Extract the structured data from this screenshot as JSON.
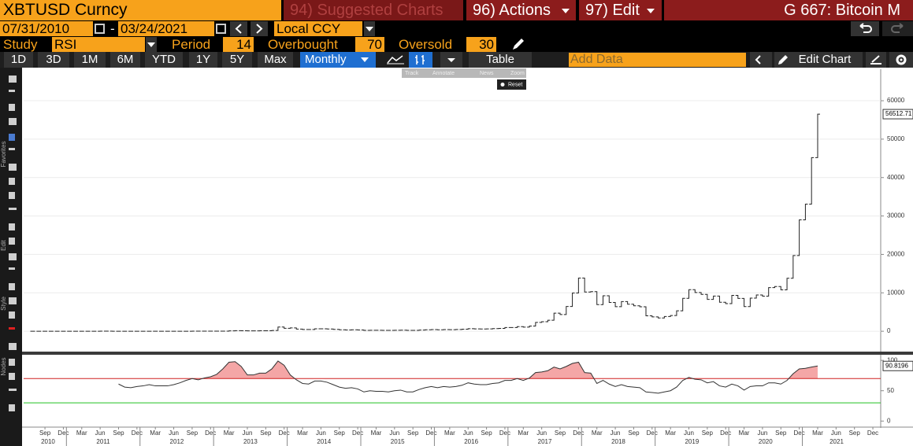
{
  "header": {
    "ticker": "XBTUSD Curncy",
    "suggested": "94) Suggested Charts",
    "actions": "96) Actions",
    "edit": "97) Edit",
    "page": "G 667: Bitcoin M"
  },
  "dates": {
    "start": "07/31/2010",
    "separator": "-",
    "end": "03/24/2021",
    "currency": "Local CCY"
  },
  "study": {
    "label": "Study",
    "name": "RSI",
    "period_label": "Period",
    "period": 14,
    "overbought_label": "Overbought",
    "overbought": 70,
    "oversold_label": "Oversold",
    "oversold": 30
  },
  "toolbar": {
    "ranges": [
      "1D",
      "3D",
      "1M",
      "6M",
      "YTD",
      "1Y",
      "5Y",
      "Max"
    ],
    "frequency": "Monthly",
    "table": "Table",
    "add_data": "Add Data",
    "edit_chart": "Edit Chart"
  },
  "overlay": {
    "tools": [
      "Track",
      "Annotate",
      "News",
      "Zoom"
    ],
    "reset": "Reset"
  },
  "sidebar": {
    "sections": [
      "Favorites",
      "Edit",
      "Style",
      "Nodes"
    ]
  },
  "chart_data": {
    "type": "price-bar",
    "color": "#222222",
    "x": [
      "2010-07",
      "2010-08",
      "2010-09",
      "2010-10",
      "2010-11",
      "2010-12",
      "2011-01",
      "2011-02",
      "2011-03",
      "2011-04",
      "2011-05",
      "2011-06",
      "2011-07",
      "2011-08",
      "2011-09",
      "2011-10",
      "2011-11",
      "2011-12",
      "2012-01",
      "2012-02",
      "2012-03",
      "2012-04",
      "2012-05",
      "2012-06",
      "2012-07",
      "2012-08",
      "2012-09",
      "2012-10",
      "2012-11",
      "2012-12",
      "2013-01",
      "2013-02",
      "2013-03",
      "2013-04",
      "2013-05",
      "2013-06",
      "2013-07",
      "2013-08",
      "2013-09",
      "2013-10",
      "2013-11",
      "2013-12",
      "2014-01",
      "2014-02",
      "2014-03",
      "2014-04",
      "2014-05",
      "2014-06",
      "2014-07",
      "2014-08",
      "2014-09",
      "2014-10",
      "2014-11",
      "2014-12",
      "2015-01",
      "2015-02",
      "2015-03",
      "2015-04",
      "2015-05",
      "2015-06",
      "2015-07",
      "2015-08",
      "2015-09",
      "2015-10",
      "2015-11",
      "2015-12",
      "2016-01",
      "2016-02",
      "2016-03",
      "2016-04",
      "2016-05",
      "2016-06",
      "2016-07",
      "2016-08",
      "2016-09",
      "2016-10",
      "2016-11",
      "2016-12",
      "2017-01",
      "2017-02",
      "2017-03",
      "2017-04",
      "2017-05",
      "2017-06",
      "2017-07",
      "2017-08",
      "2017-09",
      "2017-10",
      "2017-11",
      "2017-12",
      "2018-01",
      "2018-02",
      "2018-03",
      "2018-04",
      "2018-05",
      "2018-06",
      "2018-07",
      "2018-08",
      "2018-09",
      "2018-10",
      "2018-11",
      "2018-12",
      "2019-01",
      "2019-02",
      "2019-03",
      "2019-04",
      "2019-05",
      "2019-06",
      "2019-07",
      "2019-08",
      "2019-09",
      "2019-10",
      "2019-11",
      "2019-12",
      "2020-01",
      "2020-02",
      "2020-03",
      "2020-04",
      "2020-05",
      "2020-06",
      "2020-07",
      "2020-08",
      "2020-09",
      "2020-10",
      "2020-11",
      "2020-12",
      "2021-01",
      "2021-02",
      "2021-03"
    ],
    "values": [
      0.07,
      0.06,
      0.06,
      0.19,
      0.21,
      0.3,
      0.5,
      0.9,
      0.8,
      3.5,
      8.7,
      16,
      13,
      8.2,
      5.1,
      3.2,
      3,
      4.7,
      5.5,
      4.9,
      4.9,
      5,
      5.2,
      6.7,
      9.4,
      10.2,
      12.4,
      11.2,
      12.6,
      13.5,
      20,
      33,
      93,
      139,
      129,
      97,
      106,
      135,
      133,
      204,
      1100,
      757,
      880,
      573,
      458,
      448,
      630,
      640,
      585,
      481,
      388,
      338,
      378,
      320,
      217,
      254,
      244,
      236,
      230,
      263,
      284,
      230,
      236,
      314,
      377,
      430,
      369,
      437,
      416,
      448,
      531,
      673,
      624,
      575,
      609,
      701,
      742,
      964,
      970,
      1190,
      1080,
      1350,
      2300,
      2480,
      2875,
      4700,
      4340,
      6450,
      9950,
      13850,
      10200,
      10300,
      6930,
      9240,
      7500,
      6390,
      7730,
      7030,
      6630,
      6370,
      4020,
      3740,
      3450,
      3830,
      4100,
      5320,
      8570,
      10820,
      10080,
      9600,
      8290,
      9150,
      7540,
      7190,
      9350,
      8540,
      6420,
      8630,
      9450,
      9140,
      11350,
      11650,
      10780,
      13800,
      19700,
      28990,
      33100,
      45200,
      56512.71
    ],
    "ylim": [
      -5300,
      68200
    ],
    "yticks": [
      0,
      10000,
      20000,
      30000,
      40000,
      50000,
      60000
    ],
    "grid": true,
    "xticks": [
      {
        "value": "2010-09",
        "label": "Sep"
      },
      {
        "value": "2010-12",
        "label": "Dec"
      },
      {
        "value": "2011-03",
        "label": "Mar"
      },
      {
        "value": "2011-06",
        "label": "Jun"
      },
      {
        "value": "2011-09",
        "label": "Sep"
      },
      {
        "value": "2011-12",
        "label": "Dec"
      },
      {
        "value": "2012-03",
        "label": "Mar"
      },
      {
        "value": "2012-06",
        "label": "Jun"
      },
      {
        "value": "2012-09",
        "label": "Sep"
      },
      {
        "value": "2012-12",
        "label": "Dec"
      },
      {
        "value": "2013-03",
        "label": "Mar"
      },
      {
        "value": "2013-06",
        "label": "Jun"
      },
      {
        "value": "2013-09",
        "label": "Sep"
      },
      {
        "value": "2013-12",
        "label": "Dec"
      },
      {
        "value": "2014-03",
        "label": "Mar"
      },
      {
        "value": "2014-06",
        "label": "Jun"
      },
      {
        "value": "2014-09",
        "label": "Sep"
      },
      {
        "value": "2014-12",
        "label": "Dec"
      },
      {
        "value": "2015-03",
        "label": "Mar"
      },
      {
        "value": "2015-06",
        "label": "Jun"
      },
      {
        "value": "2015-09",
        "label": "Sep"
      },
      {
        "value": "2015-12",
        "label": "Dec"
      },
      {
        "value": "2016-03",
        "label": "Mar"
      },
      {
        "value": "2016-06",
        "label": "Jun"
      },
      {
        "value": "2016-09",
        "label": "Sep"
      },
      {
        "value": "2016-12",
        "label": "Dec"
      },
      {
        "value": "2017-03",
        "label": "Mar"
      },
      {
        "value": "2017-06",
        "label": "Jun"
      },
      {
        "value": "2017-09",
        "label": "Sep"
      },
      {
        "value": "2017-12",
        "label": "Dec"
      },
      {
        "value": "2018-03",
        "label": "Mar"
      },
      {
        "value": "2018-06",
        "label": "Jun"
      },
      {
        "value": "2018-09",
        "label": "Sep"
      },
      {
        "value": "2018-12",
        "label": "Dec"
      },
      {
        "value": "2019-03",
        "label": "Mar"
      },
      {
        "value": "2019-06",
        "label": "Jun"
      },
      {
        "value": "2019-09",
        "label": "Sep"
      },
      {
        "value": "2019-12",
        "label": "Dec"
      },
      {
        "value": "2020-03",
        "label": "Mar"
      },
      {
        "value": "2020-06",
        "label": "Jun"
      },
      {
        "value": "2020-09",
        "label": "Sep"
      },
      {
        "value": "2020-12",
        "label": "Dec"
      },
      {
        "value": "2021-03",
        "label": "Mar"
      },
      {
        "value": "2021-06",
        "label": "Jun"
      },
      {
        "value": "2021-09",
        "label": "Sep"
      },
      {
        "value": "2021-12",
        "label": "Dec"
      }
    ],
    "years": [
      "2010",
      "2011",
      "2012",
      "2013",
      "2014",
      "2015",
      "2016",
      "2017",
      "2018",
      "2019",
      "2020",
      "2021"
    ],
    "rsi": {
      "type": "line",
      "color": "#333333",
      "fill": "#f4a6a6",
      "values": [
        null,
        null,
        null,
        null,
        null,
        null,
        null,
        null,
        null,
        null,
        null,
        null,
        null,
        null,
        61,
        56,
        55,
        57,
        58,
        60,
        58,
        58,
        58,
        60,
        63,
        67,
        70,
        68,
        71,
        73,
        77,
        86,
        97,
        98,
        90,
        76,
        76,
        79,
        79,
        86,
        99,
        92,
        76,
        68,
        62,
        61,
        66,
        66,
        64,
        60,
        56,
        54,
        55,
        53,
        48,
        50,
        49,
        49,
        48,
        50,
        51,
        48,
        48,
        52,
        55,
        57,
        55,
        57,
        56,
        57,
        59,
        63,
        61,
        60,
        60,
        62,
        63,
        67,
        67,
        70,
        67,
        71,
        80,
        81,
        83,
        89,
        86,
        90,
        95,
        97,
        80,
        79,
        62,
        67,
        61,
        57,
        60,
        57,
        56,
        55,
        48,
        47,
        46,
        48,
        50,
        56,
        67,
        72,
        69,
        68,
        63,
        65,
        58,
        56,
        61,
        58,
        51,
        57,
        58,
        58,
        63,
        63,
        61,
        67,
        78,
        86,
        87,
        89,
        90.8196
      ],
      "ylim": [
        -10,
        108
      ],
      "yticks": [
        0,
        50,
        100
      ]
    }
  }
}
